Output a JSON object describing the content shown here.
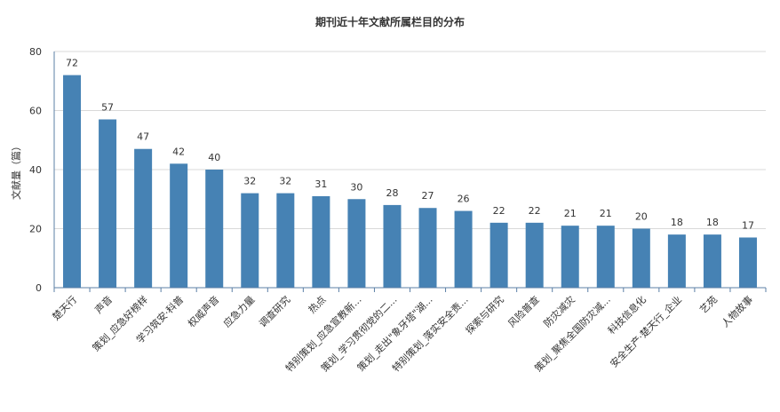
{
  "chart_data": {
    "type": "bar",
    "title": "期刊近十年文献所属栏目的分布",
    "xlabel": "",
    "ylabel": "文献量（篇）",
    "ylim": [
      0,
      80
    ],
    "yticks": [
      0,
      20,
      40,
      60,
      80
    ],
    "grid": true,
    "bar_color": "#4682b4",
    "categories": [
      "楚天行",
      "声音",
      "策划_应急好榜样",
      "学习筑安·科普",
      "权威声音",
      "应急力量",
      "调查研究",
      "热点",
      "特别策划_应急宣教新...",
      "策划_学习贯彻党的二...",
      "策划_走出\"象牙塔\"湖...",
      "特别策划_落实安全责...",
      "探索与研究",
      "风险普查",
      "防灾减灾",
      "策划_聚焦全国防灾减...",
      "科技信息化",
      "安全生产·楚天行_企业",
      "艺苑",
      "人物故事"
    ],
    "values": [
      72,
      57,
      47,
      42,
      40,
      32,
      32,
      31,
      30,
      28,
      27,
      26,
      22,
      22,
      21,
      21,
      20,
      18,
      18,
      17
    ]
  }
}
